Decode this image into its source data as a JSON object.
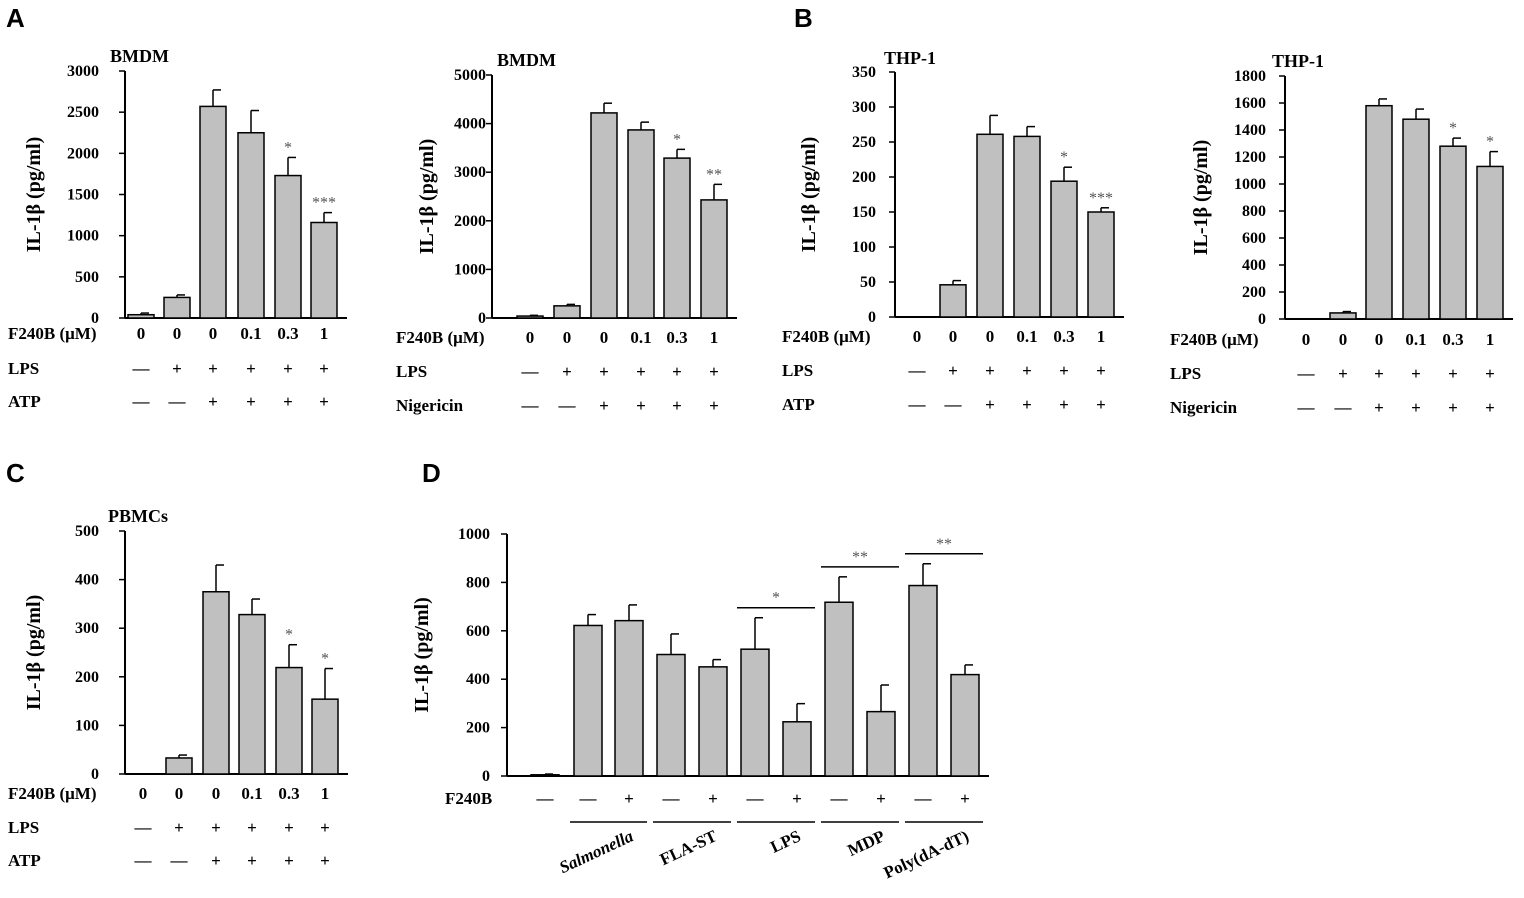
{
  "panels": [
    {
      "letter": "A"
    },
    {
      "letter": "B"
    },
    {
      "letter": "C"
    },
    {
      "letter": "D"
    }
  ],
  "colors": {
    "bar": "#c0c0c0",
    "stroke": "#000000",
    "star": "#555555"
  },
  "chart_data": [
    {
      "type": "bar",
      "panel": "A",
      "title": "BMDM",
      "ylabel": "IL-1β (pg/ml)",
      "ylim": [
        0,
        3000
      ],
      "yticks": [
        "0",
        "500",
        "1000",
        "1500",
        "2000",
        "2500",
        "3000"
      ],
      "values": [
        40,
        250,
        2570,
        2250,
        1730,
        1160
      ],
      "errors": [
        20,
        30,
        200,
        270,
        220,
        120
      ],
      "significance": [
        "",
        "",
        "",
        "",
        "*",
        "***"
      ],
      "rows": [
        {
          "label": "F240B (μM)",
          "cells": [
            "0",
            "0",
            "0",
            "0.1",
            "0.3",
            "1"
          ]
        },
        {
          "label": "LPS",
          "cells": [
            "—",
            "+",
            "+",
            "+",
            "+",
            "+"
          ]
        },
        {
          "label": "ATP",
          "cells": [
            "—",
            "—",
            "+",
            "+",
            "+",
            "+"
          ]
        }
      ]
    },
    {
      "type": "bar",
      "panel": "A",
      "title": "BMDM",
      "ylabel": "IL-1β (pg/ml)",
      "ylim": [
        0,
        5000
      ],
      "yticks": [
        "0",
        "1000",
        "2000",
        "3000",
        "4000",
        "5000"
      ],
      "values": [
        40,
        250,
        4220,
        3870,
        3290,
        2430
      ],
      "errors": [
        15,
        30,
        200,
        160,
        180,
        320
      ],
      "significance": [
        "",
        "",
        "",
        "",
        "*",
        "**"
      ],
      "rows": [
        {
          "label": "F240B (μM)",
          "cells": [
            "0",
            "0",
            "0",
            "0.1",
            "0.3",
            "1"
          ]
        },
        {
          "label": "LPS",
          "cells": [
            "—",
            "+",
            "+",
            "+",
            "+",
            "+"
          ]
        },
        {
          "label": "Nigericin",
          "cells": [
            "—",
            "—",
            "+",
            "+",
            "+",
            "+"
          ]
        }
      ]
    },
    {
      "type": "bar",
      "panel": "B",
      "title": "THP-1",
      "ylabel": "IL-1β (pg/ml)",
      "ylim": [
        0,
        350
      ],
      "yticks": [
        "0",
        "50",
        "100",
        "150",
        "200",
        "250",
        "300",
        "350"
      ],
      "values": [
        0,
        46,
        261,
        258,
        194,
        150
      ],
      "errors": [
        0,
        6,
        27,
        14,
        20,
        6
      ],
      "significance": [
        "",
        "",
        "",
        "",
        "*",
        "***"
      ],
      "rows": [
        {
          "label": "F240B (μM)",
          "cells": [
            "0",
            "0",
            "0",
            "0.1",
            "0.3",
            "1"
          ]
        },
        {
          "label": "LPS",
          "cells": [
            "—",
            "+",
            "+",
            "+",
            "+",
            "+"
          ]
        },
        {
          "label": "ATP",
          "cells": [
            "—",
            "—",
            "+",
            "+",
            "+",
            "+"
          ]
        }
      ]
    },
    {
      "type": "bar",
      "panel": "B",
      "title": "THP-1",
      "ylabel": "IL-1β (pg/ml)",
      "ylim": [
        0,
        1800
      ],
      "yticks": [
        "0",
        "200",
        "400",
        "600",
        "800",
        "1000",
        "1200",
        "1400",
        "1600",
        "1800"
      ],
      "values": [
        0,
        45,
        1580,
        1480,
        1280,
        1130
      ],
      "errors": [
        0,
        10,
        50,
        75,
        60,
        110
      ],
      "significance": [
        "",
        "",
        "",
        "",
        "*",
        "*"
      ],
      "rows": [
        {
          "label": "F240B (μM)",
          "cells": [
            "0",
            "0",
            "0",
            "0.1",
            "0.3",
            "1"
          ]
        },
        {
          "label": "LPS",
          "cells": [
            "—",
            "+",
            "+",
            "+",
            "+",
            "+"
          ]
        },
        {
          "label": "Nigericin",
          "cells": [
            "—",
            "—",
            "+",
            "+",
            "+",
            "+"
          ]
        }
      ]
    },
    {
      "type": "bar",
      "panel": "C",
      "title": "PBMCs",
      "ylabel": "IL-1β (pg/ml)",
      "ylim": [
        0,
        500
      ],
      "yticks": [
        "0",
        "100",
        "200",
        "300",
        "400",
        "500"
      ],
      "values": [
        0,
        33,
        375,
        328,
        219,
        154
      ],
      "errors": [
        0,
        6,
        55,
        32,
        47,
        63
      ],
      "significance": [
        "",
        "",
        "",
        "",
        "*",
        "*"
      ],
      "rows": [
        {
          "label": "F240B (μM)",
          "cells": [
            "0",
            "0",
            "0",
            "0.1",
            "0.3",
            "1"
          ]
        },
        {
          "label": "LPS",
          "cells": [
            "—",
            "+",
            "+",
            "+",
            "+",
            "+"
          ]
        },
        {
          "label": "ATP",
          "cells": [
            "—",
            "—",
            "+",
            "+",
            "+",
            "+"
          ]
        }
      ]
    },
    {
      "type": "bar",
      "panel": "D",
      "title": "",
      "ylabel": "IL-1β (pg/ml)",
      "ylim": [
        0,
        1000
      ],
      "yticks": [
        "0",
        "200",
        "400",
        "600",
        "800",
        "1000"
      ],
      "values": [
        5,
        622,
        642,
        502,
        451,
        524,
        224,
        718,
        266,
        787,
        419
      ],
      "errors": [
        3,
        45,
        65,
        85,
        30,
        130,
        75,
        105,
        110,
        90,
        40
      ],
      "significance": [],
      "rows": [
        {
          "label": "F240B",
          "cells": [
            "—",
            "—",
            "+",
            "—",
            "+",
            "—",
            "+",
            "—",
            "+",
            "—",
            "+"
          ]
        }
      ],
      "brackets": [
        {
          "from": 5,
          "to": 6,
          "label": "*"
        },
        {
          "from": 7,
          "to": 8,
          "label": "**"
        },
        {
          "from": 9,
          "to": 10,
          "label": "**"
        }
      ],
      "groups": [
        {
          "label": "Salmonella",
          "from": 1,
          "to": 2,
          "italic": true
        },
        {
          "label": "FLA-ST",
          "from": 3,
          "to": 4,
          "italic": false
        },
        {
          "label": "LPS",
          "from": 5,
          "to": 6,
          "italic": false
        },
        {
          "label": "MDP",
          "from": 7,
          "to": 8,
          "italic": false
        },
        {
          "label": "Poly(dA-dT)",
          "from": 9,
          "to": 10,
          "italic": false
        }
      ]
    }
  ]
}
